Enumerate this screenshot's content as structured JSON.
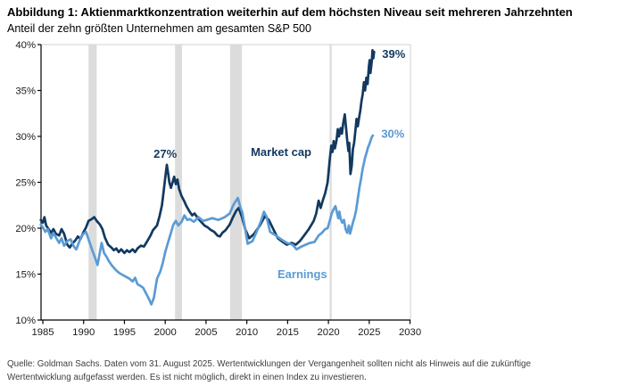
{
  "header": {
    "title": "Abbildung 1: Aktienmarktkonzentration weiterhin auf dem höchsten Niveau seit mehreren Jahrzehnten",
    "subtitle": "Anteil der zehn größten Unternehmen am gesamten S&P 500"
  },
  "footer": {
    "line1": "Quelle: Goldman Sachs. Daten vom 31. August 2025. Wertentwicklungen der Vergangenheit sollten nicht als Hinweis auf die zukünftige",
    "line2": "Wertentwicklung aufgefasst werden. Es ist nicht möglich, direkt in einen Index zu investieren."
  },
  "colors": {
    "market_cap": "#12395F",
    "earnings": "#5B9BD5",
    "recession_band": "#DCDCDC",
    "frame_light": "#D9D9D9",
    "axis": "#000000",
    "tick_label": "#1A1A1A"
  },
  "chart_data": {
    "type": "line",
    "title": "Aktienmarktkonzentration: Anteil der zehn größten Unternehmen am gesamten S&P 500",
    "xlabel": "",
    "ylabel": "",
    "xlim": [
      1984.78,
      2030.05
    ],
    "ylim": [
      10,
      40
    ],
    "x_ticks": [
      1985,
      1990,
      1995,
      2000,
      2005,
      2010,
      2015,
      2020,
      2025,
      2030
    ],
    "y_ticks": [
      10,
      15,
      20,
      25,
      30,
      35,
      40
    ],
    "y_tick_suffix": "%",
    "grid": false,
    "legend_position": "inline-labels",
    "recession_bands": [
      [
        1990.6,
        1991.6
      ],
      [
        2001.2,
        2002.05
      ],
      [
        2007.95,
        2009.4
      ],
      [
        2020.15,
        2020.4
      ]
    ],
    "series": [
      {
        "name": "Market cap",
        "color": "#12395F",
        "end_label": "39%",
        "points": [
          [
            1984.75,
            20.9
          ],
          [
            1985,
            20.6
          ],
          [
            1985.2,
            21.2
          ],
          [
            1985.4,
            20.3
          ],
          [
            1985.7,
            19.9
          ],
          [
            1986,
            19.5
          ],
          [
            1986.3,
            19.9
          ],
          [
            1986.6,
            19.4
          ],
          [
            1987,
            19.2
          ],
          [
            1987.3,
            19.9
          ],
          [
            1987.6,
            19.4
          ],
          [
            1988,
            18.2
          ],
          [
            1988.3,
            17.9
          ],
          [
            1988.6,
            18.3
          ],
          [
            1989,
            18.7
          ],
          [
            1989.3,
            19.1
          ],
          [
            1989.6,
            18.8
          ],
          [
            1990,
            19.6
          ],
          [
            1990.3,
            20.1
          ],
          [
            1990.6,
            20.8
          ],
          [
            1991,
            21.0
          ],
          [
            1991.3,
            21.2
          ],
          [
            1991.6,
            20.8
          ],
          [
            1992,
            20.4
          ],
          [
            1992.3,
            19.9
          ],
          [
            1992.6,
            19.0
          ],
          [
            1993,
            18.2
          ],
          [
            1993.4,
            17.9
          ],
          [
            1993.7,
            17.6
          ],
          [
            1994,
            17.8
          ],
          [
            1994.3,
            17.4
          ],
          [
            1994.6,
            17.7
          ],
          [
            1995,
            17.3
          ],
          [
            1995.3,
            17.6
          ],
          [
            1995.6,
            17.4
          ],
          [
            1996,
            17.7
          ],
          [
            1996.3,
            17.4
          ],
          [
            1996.6,
            17.8
          ],
          [
            1997,
            18.1
          ],
          [
            1997.4,
            18.0
          ],
          [
            1997.8,
            18.6
          ],
          [
            1998.2,
            19.2
          ],
          [
            1998.5,
            19.8
          ],
          [
            1999,
            20.3
          ],
          [
            1999.3,
            21.3
          ],
          [
            1999.6,
            22.5
          ],
          [
            1999.8,
            24.0
          ],
          [
            2000,
            25.5
          ],
          [
            2000.2,
            26.9
          ],
          [
            2000.35,
            26.0
          ],
          [
            2000.5,
            25.0
          ],
          [
            2000.7,
            24.4
          ],
          [
            2000.9,
            25.0
          ],
          [
            2001.1,
            25.6
          ],
          [
            2001.3,
            24.8
          ],
          [
            2001.5,
            25.3
          ],
          [
            2001.7,
            24.3
          ],
          [
            2002,
            23.5
          ],
          [
            2002.3,
            23.0
          ],
          [
            2002.6,
            22.4
          ],
          [
            2003,
            21.8
          ],
          [
            2003.3,
            21.4
          ],
          [
            2003.6,
            21.6
          ],
          [
            2004,
            21.1
          ],
          [
            2004.4,
            20.7
          ],
          [
            2004.8,
            20.3
          ],
          [
            2005.2,
            20.1
          ],
          [
            2005.6,
            19.8
          ],
          [
            2006,
            19.6
          ],
          [
            2006.4,
            19.2
          ],
          [
            2006.7,
            19.1
          ],
          [
            2007,
            19.5
          ],
          [
            2007.4,
            19.8
          ],
          [
            2007.9,
            20.4
          ],
          [
            2008.3,
            21.2
          ],
          [
            2008.7,
            21.9
          ],
          [
            2009,
            22.2
          ],
          [
            2009.4,
            21.2
          ],
          [
            2009.8,
            19.9
          ],
          [
            2010.3,
            18.9
          ],
          [
            2010.9,
            19.4
          ],
          [
            2011.6,
            20.3
          ],
          [
            2012.2,
            21.3
          ],
          [
            2012.7,
            20.9
          ],
          [
            2013.3,
            19.8
          ],
          [
            2013.8,
            18.9
          ],
          [
            2014.4,
            18.5
          ],
          [
            2014.9,
            18.2
          ],
          [
            2015.5,
            18.4
          ],
          [
            2016,
            18.2
          ],
          [
            2016.5,
            18.6
          ],
          [
            2017.1,
            19.3
          ],
          [
            2017.6,
            19.9
          ],
          [
            2018.2,
            20.8
          ],
          [
            2018.5,
            21.6
          ],
          [
            2018.8,
            23.0
          ],
          [
            2019.05,
            22.2
          ],
          [
            2019.3,
            23.0
          ],
          [
            2019.6,
            23.8
          ],
          [
            2019.9,
            25.0
          ],
          [
            2020.16,
            27.5
          ],
          [
            2020.35,
            29.0
          ],
          [
            2020.5,
            28.3
          ],
          [
            2020.65,
            29.5
          ],
          [
            2020.8,
            28.7
          ],
          [
            2021,
            29.6
          ],
          [
            2021.15,
            30.8
          ],
          [
            2021.3,
            30.0
          ],
          [
            2021.5,
            30.9
          ],
          [
            2021.65,
            30.3
          ],
          [
            2021.8,
            31.4
          ],
          [
            2022,
            32.4
          ],
          [
            2022.15,
            31.0
          ],
          [
            2022.3,
            29.6
          ],
          [
            2022.45,
            28.4
          ],
          [
            2022.55,
            29.3
          ],
          [
            2022.7,
            25.9
          ],
          [
            2022.85,
            26.8
          ],
          [
            2023,
            28.6
          ],
          [
            2023.15,
            29.3
          ],
          [
            2023.3,
            30.6
          ],
          [
            2023.45,
            31.9
          ],
          [
            2023.6,
            31.1
          ],
          [
            2023.75,
            32.0
          ],
          [
            2023.9,
            32.8
          ],
          [
            2024.05,
            33.8
          ],
          [
            2024.2,
            34.6
          ],
          [
            2024.35,
            35.9
          ],
          [
            2024.5,
            35.0
          ],
          [
            2024.65,
            36.4
          ],
          [
            2024.8,
            35.7
          ],
          [
            2024.95,
            37.6
          ],
          [
            2025.05,
            38.3
          ],
          [
            2025.15,
            36.9
          ],
          [
            2025.3,
            38.1
          ],
          [
            2025.4,
            39.4
          ],
          [
            2025.5,
            38.5
          ],
          [
            2025.6,
            39.2
          ]
        ]
      },
      {
        "name": "Earnings",
        "color": "#5B9BD5",
        "end_label": "30%",
        "points": [
          [
            1984.75,
            20.4
          ],
          [
            1985,
            20.1
          ],
          [
            1985.3,
            19.6
          ],
          [
            1985.6,
            19.9
          ],
          [
            1986,
            18.9
          ],
          [
            1986.3,
            19.5
          ],
          [
            1986.6,
            19.0
          ],
          [
            1987,
            18.4
          ],
          [
            1987.3,
            18.9
          ],
          [
            1987.6,
            18.1
          ],
          [
            1988,
            18.6
          ],
          [
            1988.4,
            18.8
          ],
          [
            1988.8,
            18.0
          ],
          [
            1989.1,
            17.7
          ],
          [
            1989.4,
            18.4
          ],
          [
            1989.7,
            19.1
          ],
          [
            1990,
            19.4
          ],
          [
            1990.3,
            19.6
          ],
          [
            1990.6,
            18.8
          ],
          [
            1990.9,
            18.0
          ],
          [
            1991.1,
            17.5
          ],
          [
            1991.4,
            16.8
          ],
          [
            1991.7,
            16.0
          ],
          [
            1992,
            17.4
          ],
          [
            1992.2,
            18.4
          ],
          [
            1992.5,
            17.3
          ],
          [
            1992.8,
            16.9
          ],
          [
            1993.1,
            16.4
          ],
          [
            1993.5,
            15.9
          ],
          [
            1994,
            15.4
          ],
          [
            1994.4,
            15.1
          ],
          [
            1994.8,
            14.9
          ],
          [
            1995.2,
            14.7
          ],
          [
            1995.6,
            14.5
          ],
          [
            1996,
            14.2
          ],
          [
            1996.3,
            14.6
          ],
          [
            1996.6,
            13.9
          ],
          [
            1997,
            13.7
          ],
          [
            1997.3,
            13.5
          ],
          [
            1997.6,
            13.0
          ],
          [
            1998,
            12.3
          ],
          [
            1998.3,
            11.7
          ],
          [
            1998.6,
            12.4
          ],
          [
            1999,
            14.5
          ],
          [
            1999.4,
            15.3
          ],
          [
            1999.7,
            16.2
          ],
          [
            2000,
            17.4
          ],
          [
            2000.3,
            18.3
          ],
          [
            2000.6,
            19.2
          ],
          [
            2001,
            20.4
          ],
          [
            2001.3,
            20.8
          ],
          [
            2001.6,
            20.3
          ],
          [
            2002,
            20.7
          ],
          [
            2002.35,
            21.4
          ],
          [
            2002.7,
            20.9
          ],
          [
            2003,
            21.0
          ],
          [
            2003.5,
            20.7
          ],
          [
            2004.1,
            21.2
          ],
          [
            2004.6,
            20.8
          ],
          [
            2005.1,
            20.9
          ],
          [
            2005.75,
            21.1
          ],
          [
            2006.5,
            20.9
          ],
          [
            2007.3,
            21.2
          ],
          [
            2007.9,
            21.6
          ],
          [
            2008.4,
            22.6
          ],
          [
            2008.9,
            23.3
          ],
          [
            2009.2,
            22.3
          ],
          [
            2009.45,
            21.7
          ],
          [
            2009.8,
            19.9
          ],
          [
            2010.1,
            18.3
          ],
          [
            2010.7,
            18.6
          ],
          [
            2011.2,
            19.6
          ],
          [
            2011.75,
            20.8
          ],
          [
            2012.1,
            21.8
          ],
          [
            2012.4,
            21.3
          ],
          [
            2012.85,
            19.6
          ],
          [
            2013.4,
            19.3
          ],
          [
            2014.2,
            18.8
          ],
          [
            2014.9,
            18.4
          ],
          [
            2015.6,
            18.2
          ],
          [
            2016.1,
            17.7
          ],
          [
            2016.7,
            18.0
          ],
          [
            2017.2,
            18.2
          ],
          [
            2017.75,
            18.4
          ],
          [
            2018.3,
            18.5
          ],
          [
            2018.8,
            19.2
          ],
          [
            2019.2,
            19.5
          ],
          [
            2019.6,
            19.9
          ],
          [
            2019.9,
            20.0
          ],
          [
            2020.16,
            20.8
          ],
          [
            2020.4,
            21.6
          ],
          [
            2020.65,
            22.1
          ],
          [
            2020.85,
            22.4
          ],
          [
            2021.05,
            21.7
          ],
          [
            2021.2,
            21.1
          ],
          [
            2021.35,
            21.8
          ],
          [
            2021.5,
            21.0
          ],
          [
            2021.7,
            20.6
          ],
          [
            2021.9,
            20.9
          ],
          [
            2022.1,
            19.9
          ],
          [
            2022.3,
            19.5
          ],
          [
            2022.5,
            20.3
          ],
          [
            2022.65,
            19.4
          ],
          [
            2022.8,
            19.9
          ],
          [
            2023,
            20.6
          ],
          [
            2023.2,
            21.2
          ],
          [
            2023.4,
            22.0
          ],
          [
            2023.6,
            23.2
          ],
          [
            2023.8,
            24.4
          ],
          [
            2024,
            25.4
          ],
          [
            2024.2,
            26.5
          ],
          [
            2024.35,
            27.1
          ],
          [
            2024.5,
            27.7
          ],
          [
            2024.7,
            28.3
          ],
          [
            2024.85,
            28.8
          ],
          [
            2025,
            29.1
          ],
          [
            2025.15,
            29.5
          ],
          [
            2025.3,
            29.9
          ],
          [
            2025.45,
            30.1
          ]
        ]
      }
    ],
    "annotations": [
      {
        "id": "peak-2000",
        "text": "27%",
        "x": 2000.0,
        "y": 28.1,
        "color": "#12395F",
        "anchor": "middle"
      },
      {
        "id": "market-cap-label",
        "text": "Market cap",
        "x": 2014.2,
        "y": 28.3,
        "color": "#12395F",
        "anchor": "middle"
      },
      {
        "id": "market-cap-end",
        "text": "39%",
        "x": 2028.0,
        "y": 39.0,
        "color": "#12395F",
        "anchor": "middle"
      },
      {
        "id": "earnings-end",
        "text": "30%",
        "x": 2027.9,
        "y": 30.3,
        "color": "#5B9BD5",
        "anchor": "middle"
      },
      {
        "id": "earnings-label",
        "text": "Earnings",
        "x": 2016.8,
        "y": 15.0,
        "color": "#5B9BD5",
        "anchor": "middle"
      }
    ]
  }
}
